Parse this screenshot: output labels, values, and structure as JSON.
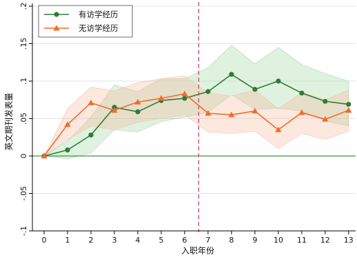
{
  "chart_data": {
    "type": "line",
    "title": "",
    "xlabel": "入职年份",
    "ylabel": "英文期刊发表量",
    "x": [
      0,
      1,
      2,
      3,
      4,
      5,
      6,
      7,
      8,
      9,
      10,
      11,
      12,
      13
    ],
    "xlim": [
      -0.5,
      13.3
    ],
    "ylim": [
      -0.1,
      0.2
    ],
    "yticks": [
      -0.1,
      -0.05,
      0,
      0.05,
      0.1,
      0.15,
      0.2
    ],
    "ytick_labels": [
      "-.1",
      "-.05",
      "0",
      ".05",
      ".1",
      ".15",
      ".2"
    ],
    "xticks": [
      0,
      1,
      2,
      3,
      4,
      5,
      6,
      7,
      8,
      9,
      10,
      11,
      12,
      13
    ],
    "xtick_labels": [
      "0",
      "1",
      "2",
      "3",
      "4",
      "5",
      "6",
      "7",
      "8",
      "9",
      "10",
      "11",
      "12",
      "13"
    ],
    "grid": true,
    "legend_position": "top-left",
    "vline_x": 6.6,
    "vline_color": "#d45a7a",
    "zero_line_color": "#3f8f3f",
    "series": [
      {
        "name": "有访学经历",
        "marker": "circle",
        "color": "#2e7d32",
        "band_color": "#9cd39c",
        "x": [
          0,
          1,
          2,
          3,
          4,
          5,
          6,
          7,
          8,
          9,
          10,
          11,
          12,
          13
        ],
        "values": [
          0,
          0.008,
          0.028,
          0.065,
          0.059,
          0.074,
          0.077,
          0.086,
          0.109,
          0.089,
          0.1,
          0.084,
          0.073,
          0.069
        ],
        "lower": [
          0,
          -0.004,
          0.004,
          0.035,
          0.032,
          0.046,
          0.052,
          0.058,
          0.082,
          0.062,
          0.064,
          0.06,
          0.047,
          0.04
        ],
        "upper": [
          0,
          0.02,
          0.052,
          0.095,
          0.086,
          0.103,
          0.103,
          0.118,
          0.148,
          0.123,
          0.145,
          0.122,
          0.11,
          0.1
        ]
      },
      {
        "name": "无访学经历",
        "marker": "triangle",
        "color": "#f26b2b",
        "band_color": "#f7b89a",
        "x": [
          0,
          1,
          2,
          3,
          4,
          5,
          6,
          7,
          8,
          9,
          10,
          11,
          12,
          13
        ],
        "values": [
          0,
          0.042,
          0.071,
          0.061,
          0.072,
          0.077,
          0.083,
          0.057,
          0.055,
          0.06,
          0.035,
          0.058,
          0.049,
          0.061
        ],
        "lower": [
          0,
          0.022,
          0.04,
          0.035,
          0.045,
          0.05,
          0.055,
          0.032,
          0.03,
          0.033,
          0.01,
          0.03,
          0.022,
          0.033
        ],
        "upper": [
          0,
          0.063,
          0.092,
          0.087,
          0.098,
          0.103,
          0.107,
          0.084,
          0.08,
          0.088,
          0.063,
          0.085,
          0.075,
          0.088
        ]
      }
    ]
  }
}
